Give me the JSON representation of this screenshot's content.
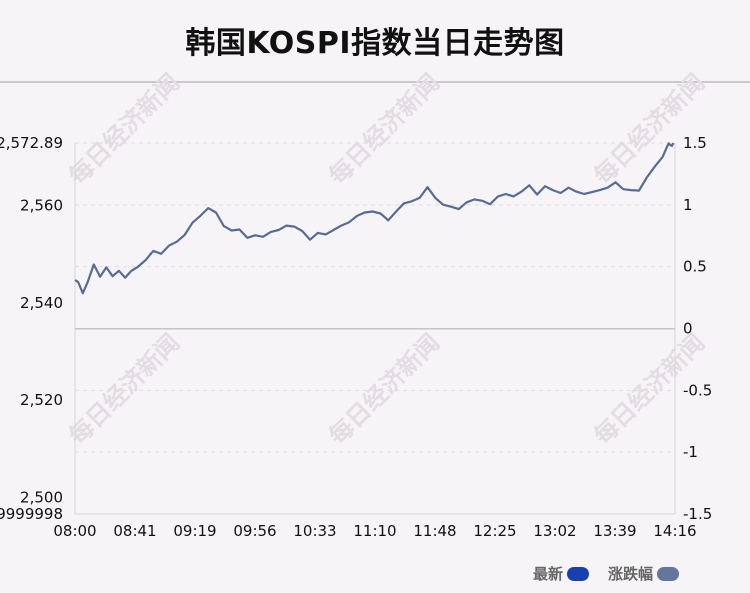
{
  "title": "韩国KOSPI指数当日走势图",
  "watermark": "每日经济新闻",
  "legend": {
    "latest_label": "最新",
    "change_label": "涨跌幅",
    "latest_color": "#1840b0",
    "change_color": "#6276a0"
  },
  "chart_data": {
    "type": "line",
    "line_color": "#566c95",
    "x_ticks": [
      "08:00",
      "08:41",
      "09:19",
      "09:56",
      "10:33",
      "11:10",
      "11:48",
      "12:25",
      "13:02",
      "13:39",
      "14:16"
    ],
    "y_left_tick_labels": [
      "2,572.89",
      "2,560",
      "2,540",
      "2,520",
      "2,500"
    ],
    "y_left_ticks": [
      2572.89,
      2560,
      2540,
      2520,
      2500
    ],
    "y_left_extra_label": "9999998",
    "y_right_tick_labels": [
      "1.5",
      "1",
      "0.5",
      "0",
      "-0.5",
      "-1",
      "-1.5"
    ],
    "y_right_ticks": [
      1.5,
      1,
      0.5,
      0,
      -0.5,
      -1,
      -1.5
    ],
    "ylim_left": [
      2496.6,
      2572.89
    ],
    "ylim_right": [
      -1.5,
      1.5
    ],
    "baseline": 2534.7,
    "grid": true,
    "x_minutes_range": [
      0,
      383
    ],
    "series": [
      {
        "x_minutes": [
          0,
          2,
          5,
          8,
          12,
          16,
          20,
          24,
          28,
          32,
          36,
          40,
          45,
          50,
          55,
          60,
          65,
          70,
          75,
          80,
          85,
          90,
          95,
          100,
          105,
          110,
          115,
          120,
          125,
          130,
          135,
          140,
          145,
          150,
          155,
          160,
          165,
          170,
          175,
          180,
          185,
          190,
          195,
          200,
          205,
          210,
          215,
          220,
          225,
          230,
          235,
          240,
          245,
          250,
          255,
          260,
          265,
          270,
          275,
          280,
          285,
          290,
          295,
          300,
          305,
          310,
          315,
          320,
          325,
          330,
          335,
          340,
          345,
          350,
          355,
          360,
          365,
          370,
          375,
          378,
          379,
          380,
          381,
          382
        ],
        "values": [
          2544.7,
          2544.3,
          2542.0,
          2544.2,
          2547.9,
          2545.4,
          2547.3,
          2545.5,
          2546.6,
          2545.2,
          2546.6,
          2547.4,
          2548.8,
          2550.7,
          2550.1,
          2551.8,
          2552.6,
          2554.0,
          2556.5,
          2557.9,
          2559.5,
          2558.6,
          2555.8,
          2554.9,
          2555.1,
          2553.4,
          2553.9,
          2553.6,
          2554.6,
          2555.0,
          2555.9,
          2555.7,
          2554.8,
          2553.0,
          2554.4,
          2554.1,
          2555.0,
          2555.9,
          2556.6,
          2557.9,
          2558.6,
          2558.8,
          2558.4,
          2557.0,
          2558.8,
          2560.5,
          2560.9,
          2561.6,
          2563.8,
          2561.6,
          2560.2,
          2559.8,
          2559.3,
          2560.7,
          2561.3,
          2561.0,
          2560.3,
          2561.9,
          2562.4,
          2561.9,
          2562.9,
          2564.2,
          2562.3,
          2564.0,
          2563.2,
          2562.6,
          2563.7,
          2562.9,
          2562.4,
          2562.8,
          2563.2,
          2563.7,
          2564.8,
          2563.4,
          2563.2,
          2563.1,
          2565.8,
          2568.0,
          2570.0,
          2572.2,
          2572.8,
          2572.5,
          2572.3,
          2572.89
        ]
      }
    ]
  }
}
